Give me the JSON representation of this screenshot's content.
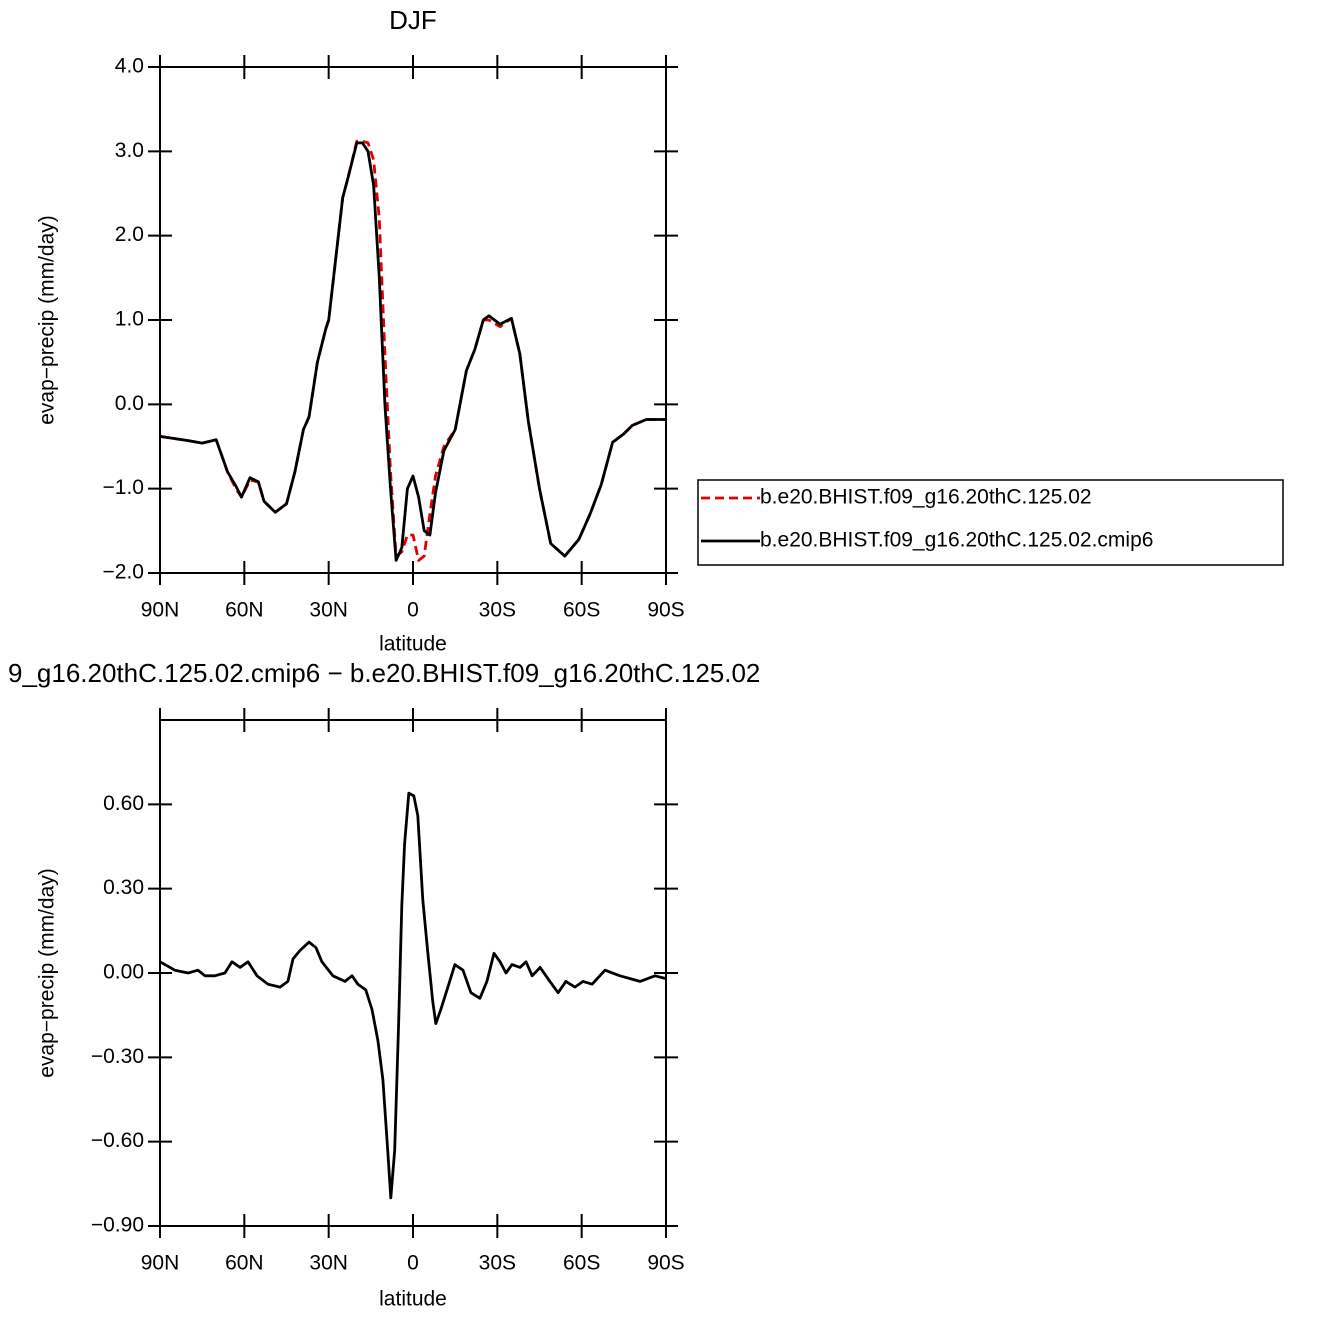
{
  "chart_data": [
    {
      "type": "line",
      "title": "DJF",
      "xlabel": "latitude",
      "ylabel": "evap−precip (mm/day)",
      "x": [
        90,
        80,
        75,
        70,
        66,
        63,
        61,
        58,
        55,
        53,
        49,
        45,
        42,
        39,
        37,
        34,
        31,
        30,
        25,
        23,
        20,
        18,
        16,
        14,
        12,
        10,
        8,
        6,
        4,
        2,
        0,
        -2,
        -4,
        -6,
        -8,
        -11,
        -15,
        -19,
        -22,
        -25,
        -27,
        -31,
        -35,
        -38,
        -41,
        -45,
        -49,
        -54,
        -59,
        -63,
        -67,
        -71,
        -75,
        -78,
        -83,
        -86,
        -90
      ],
      "series": [
        {
          "name": "b.e20.BHIST.f09_g16.20thC.125.02",
          "color": "#e00000",
          "linestyle": "dashed",
          "values": [
            -0.38,
            -0.43,
            -0.46,
            -0.42,
            -0.8,
            -1.0,
            -1.1,
            -0.9,
            -0.92,
            -1.15,
            -1.28,
            -1.18,
            -0.8,
            -0.3,
            -0.15,
            0.5,
            0.9,
            1.0,
            2.45,
            2.7,
            3.12,
            3.12,
            3.1,
            2.9,
            2.2,
            0.6,
            -0.8,
            -1.8,
            -1.75,
            -1.55,
            -1.55,
            -1.85,
            -1.8,
            -1.3,
            -0.85,
            -0.5,
            -0.3,
            0.4,
            0.65,
            1.0,
            1.0,
            0.92,
            1.02,
            0.6,
            -0.2,
            -1.0,
            -1.65,
            -1.8,
            -1.6,
            -1.3,
            -0.95,
            -0.45,
            -0.35,
            -0.25,
            -0.18,
            -0.18,
            -0.18
          ]
        },
        {
          "name": "b.e20.BHIST.f09_g16.20thC.125.02.cmip6",
          "color": "#000000",
          "linestyle": "solid",
          "values": [
            -0.38,
            -0.43,
            -0.46,
            -0.42,
            -0.8,
            -0.97,
            -1.1,
            -0.87,
            -0.92,
            -1.15,
            -1.28,
            -1.18,
            -0.8,
            -0.3,
            -0.15,
            0.5,
            0.9,
            1.0,
            2.45,
            2.7,
            3.1,
            3.1,
            3.0,
            2.6,
            1.5,
            0.0,
            -1.0,
            -1.85,
            -1.7,
            -1.0,
            -0.85,
            -1.1,
            -1.5,
            -1.55,
            -1.05,
            -0.55,
            -0.3,
            0.4,
            0.65,
            1.0,
            1.05,
            0.95,
            1.02,
            0.6,
            -0.2,
            -1.0,
            -1.65,
            -1.8,
            -1.6,
            -1.3,
            -0.95,
            -0.45,
            -0.35,
            -0.25,
            -0.18,
            -0.18,
            -0.18
          ]
        }
      ],
      "xlim": [
        90,
        -90
      ],
      "xticks": [
        {
          "value": 90,
          "label": "90N"
        },
        {
          "value": 60,
          "label": "60N"
        },
        {
          "value": 30,
          "label": "30N"
        },
        0,
        {
          "value": -30,
          "label": "30S"
        },
        {
          "value": -60,
          "label": "60S"
        },
        {
          "value": -90,
          "label": "90S"
        }
      ],
      "ylim": [
        -2,
        4
      ],
      "yticks": [
        {
          "value": -2,
          "label": "−2.0"
        },
        {
          "value": -1,
          "label": "−1.0"
        },
        {
          "value": 0,
          "label": "0.0"
        },
        {
          "value": 1,
          "label": "1.0"
        },
        {
          "value": 2,
          "label": "2.0"
        },
        {
          "value": 3,
          "label": "3.0"
        },
        {
          "value": 4,
          "label": "4.0"
        }
      ],
      "legend": "outside-right"
    },
    {
      "type": "line",
      "title": "9_g16.20thC.125.02.cmip6 − b.e20.BHIST.f09_g16.20thC.125.02",
      "xlabel": "latitude",
      "ylabel": "evap−precip (mm/day)",
      "x": [
        90,
        84.7,
        80,
        76.5,
        74,
        70.5,
        66.9,
        64.4,
        61.5,
        58.7,
        55.5,
        51.6,
        47.3,
        44.5,
        42.7,
        40.2,
        37,
        34.5,
        32.4,
        28.5,
        24.2,
        21.7,
        19.6,
        16.8,
        14.6,
        12.5,
        10.7,
        9,
        7.9,
        6.5,
        5.1,
        4,
        3,
        1.5,
        -0.3,
        -1.7,
        -3.5,
        -5.2,
        -7,
        -8.1,
        -9.9,
        -12.1,
        -14.9,
        -17.8,
        -20.6,
        -23.8,
        -26.3,
        -28.8,
        -31,
        -33.1,
        -35.2,
        -38.1,
        -40.2,
        -42.4,
        -45.2,
        -48.7,
        -51.6,
        -54.4,
        -57.6,
        -60.5,
        -63.7,
        -68.3,
        -73.6,
        -80.8,
        -86.1,
        -90
      ],
      "values": [
        0.04,
        0.01,
        0.0,
        0.01,
        -0.01,
        -0.01,
        0.0,
        0.04,
        0.02,
        0.04,
        -0.01,
        -0.04,
        -0.05,
        -0.03,
        0.05,
        0.08,
        0.11,
        0.09,
        0.04,
        -0.01,
        -0.03,
        -0.01,
        -0.04,
        -0.06,
        -0.13,
        -0.24,
        -0.38,
        -0.63,
        -0.8,
        -0.63,
        -0.17,
        0.24,
        0.46,
        0.64,
        0.63,
        0.56,
        0.26,
        0.08,
        -0.1,
        -0.18,
        -0.13,
        -0.06,
        0.03,
        0.01,
        -0.07,
        -0.09,
        -0.03,
        0.07,
        0.04,
        0.0,
        0.03,
        0.02,
        0.04,
        -0.01,
        0.02,
        -0.03,
        -0.07,
        -0.03,
        -0.05,
        -0.03,
        -0.04,
        0.01,
        -0.01,
        -0.03,
        -0.01,
        -0.02
      ],
      "color": "#000000",
      "linestyle": "solid",
      "xlim": [
        90,
        -90
      ],
      "xticks": [
        {
          "value": 90,
          "label": "90N"
        },
        {
          "value": 60,
          "label": "60N"
        },
        {
          "value": 30,
          "label": "30N"
        },
        0,
        {
          "value": -30,
          "label": "30S"
        },
        {
          "value": -60,
          "label": "60S"
        },
        {
          "value": -90,
          "label": "90S"
        }
      ],
      "ylim": [
        -0.9,
        0.9
      ],
      "yticks": [
        {
          "value": -0.9,
          "label": "−0.90"
        },
        {
          "value": -0.6,
          "label": "−0.60"
        },
        {
          "value": -0.3,
          "label": "−0.30"
        },
        {
          "value": 0,
          "label": "0.00"
        },
        {
          "value": 0.3,
          "label": "0.30"
        },
        {
          "value": 0.6,
          "label": "0.60"
        }
      ]
    }
  ]
}
